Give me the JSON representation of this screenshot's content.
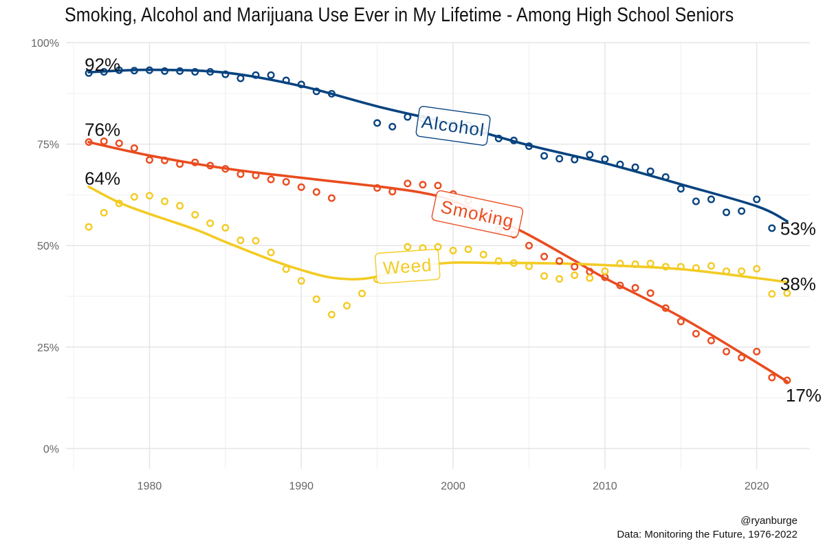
{
  "chart_data": {
    "type": "line",
    "title": "Smoking, Alcohol and Marijuana Use Ever in My Lifetime - Among High School Seniors",
    "xlabel": "",
    "ylabel": "",
    "xlim": [
      1974.5,
      2023.5
    ],
    "ylim": [
      -0.05,
      1.0
    ],
    "x_ticks": [
      {
        "value": 1980,
        "label": "1980"
      },
      {
        "value": 1990,
        "label": "1990"
      },
      {
        "value": 2000,
        "label": "2000"
      },
      {
        "value": 2010,
        "label": "2010"
      },
      {
        "value": 2020,
        "label": "2020"
      }
    ],
    "y_ticks": [
      {
        "value": 0,
        "label": "0%"
      },
      {
        "value": 0.25,
        "label": "25%"
      },
      {
        "value": 0.5,
        "label": "50%"
      },
      {
        "value": 0.75,
        "label": "75%"
      },
      {
        "value": 1.0,
        "label": "100%"
      }
    ],
    "grid": true,
    "legend": "none",
    "series": [
      {
        "name": "Alcohol",
        "color": "#08437F",
        "label_rotation": 8,
        "label_pos": [
          2000,
          0.795
        ],
        "points": [
          [
            1976,
            0.925
          ],
          [
            1977,
            0.928
          ],
          [
            1978,
            0.932
          ],
          [
            1979,
            0.931
          ],
          [
            1980,
            0.932
          ],
          [
            1981,
            0.93
          ],
          [
            1982,
            0.93
          ],
          [
            1983,
            0.928
          ],
          [
            1984,
            0.928
          ],
          [
            1985,
            0.922
          ],
          [
            1986,
            0.912
          ],
          [
            1987,
            0.92
          ],
          [
            1988,
            0.92
          ],
          [
            1989,
            0.907
          ],
          [
            1990,
            0.897
          ],
          [
            1991,
            0.88
          ],
          [
            1992,
            0.874
          ],
          [
            1995,
            0.802
          ],
          [
            1996,
            0.793
          ],
          [
            1997,
            0.817
          ],
          [
            1998,
            0.813
          ],
          [
            1999,
            0.8
          ],
          [
            2000,
            0.8
          ],
          [
            2001,
            0.797
          ],
          [
            2002,
            0.781
          ],
          [
            2003,
            0.764
          ],
          [
            2004,
            0.759
          ],
          [
            2005,
            0.745
          ],
          [
            2006,
            0.721
          ],
          [
            2007,
            0.714
          ],
          [
            2008,
            0.712
          ],
          [
            2009,
            0.724
          ],
          [
            2010,
            0.713
          ],
          [
            2011,
            0.7
          ],
          [
            2012,
            0.693
          ],
          [
            2013,
            0.683
          ],
          [
            2014,
            0.669
          ],
          [
            2015,
            0.64
          ],
          [
            2016,
            0.609
          ],
          [
            2017,
            0.614
          ],
          [
            2018,
            0.582
          ],
          [
            2019,
            0.585
          ],
          [
            2020,
            0.614
          ],
          [
            2021,
            0.543
          ]
        ],
        "trend": [
          [
            1976,
            0.927
          ],
          [
            1980,
            0.933
          ],
          [
            1985,
            0.926
          ],
          [
            1990,
            0.893
          ],
          [
            1995,
            0.843
          ],
          [
            2000,
            0.799
          ],
          [
            2005,
            0.747
          ],
          [
            2010,
            0.703
          ],
          [
            2015,
            0.651
          ],
          [
            2020,
            0.597
          ],
          [
            2022,
            0.56
          ]
        ],
        "end_labels": [
          {
            "text": "92%",
            "x": 1976,
            "y": 0.92,
            "side": "start"
          },
          {
            "text": "53%",
            "x": 2022,
            "y": 0.53,
            "side": "end"
          }
        ]
      },
      {
        "name": "Smoking",
        "color": "#E94C1F",
        "label_rotation": 12,
        "label_pos": [
          2001.6,
          0.578
        ],
        "points": [
          [
            1976,
            0.755
          ],
          [
            1977,
            0.757
          ],
          [
            1978,
            0.752
          ],
          [
            1979,
            0.74
          ],
          [
            1980,
            0.711
          ],
          [
            1981,
            0.71
          ],
          [
            1982,
            0.701
          ],
          [
            1983,
            0.705
          ],
          [
            1984,
            0.697
          ],
          [
            1985,
            0.689
          ],
          [
            1986,
            0.676
          ],
          [
            1987,
            0.673
          ],
          [
            1988,
            0.663
          ],
          [
            1989,
            0.657
          ],
          [
            1990,
            0.644
          ],
          [
            1991,
            0.632
          ],
          [
            1992,
            0.617
          ],
          [
            1995,
            0.642
          ],
          [
            1996,
            0.633
          ],
          [
            1997,
            0.653
          ],
          [
            1998,
            0.65
          ],
          [
            1999,
            0.648
          ],
          [
            2000,
            0.627
          ],
          [
            2001,
            0.611
          ],
          [
            2002,
            0.571
          ],
          [
            2003,
            0.539
          ],
          [
            2004,
            0.527
          ],
          [
            2005,
            0.5
          ],
          [
            2006,
            0.473
          ],
          [
            2007,
            0.462
          ],
          [
            2008,
            0.448
          ],
          [
            2009,
            0.436
          ],
          [
            2010,
            0.422
          ],
          [
            2011,
            0.402
          ],
          [
            2012,
            0.396
          ],
          [
            2013,
            0.383
          ],
          [
            2014,
            0.346
          ],
          [
            2015,
            0.313
          ],
          [
            2016,
            0.283
          ],
          [
            2017,
            0.266
          ],
          [
            2018,
            0.239
          ],
          [
            2019,
            0.224
          ],
          [
            2020,
            0.239
          ],
          [
            2021,
            0.175
          ],
          [
            2022,
            0.168
          ]
        ],
        "trend": [
          [
            1976,
            0.755
          ],
          [
            1980,
            0.722
          ],
          [
            1985,
            0.69
          ],
          [
            1990,
            0.667
          ],
          [
            1995,
            0.646
          ],
          [
            1998,
            0.63
          ],
          [
            2000,
            0.61
          ],
          [
            2003,
            0.562
          ],
          [
            2005,
            0.526
          ],
          [
            2008,
            0.463
          ],
          [
            2010,
            0.42
          ],
          [
            2015,
            0.324
          ],
          [
            2020,
            0.212
          ],
          [
            2022,
            0.165
          ]
        ],
        "end_labels": [
          {
            "text": "76%",
            "x": 1976,
            "y": 0.76,
            "side": "start"
          },
          {
            "text": "17%",
            "x": 2022,
            "y": 0.17,
            "side": "end"
          }
        ]
      },
      {
        "name": "Weed",
        "color": "#F3CB23",
        "label_rotation": -4,
        "label_pos": [
          1997,
          0.449
        ],
        "points": [
          [
            1976,
            0.546
          ],
          [
            1977,
            0.581
          ],
          [
            1978,
            0.604
          ],
          [
            1979,
            0.62
          ],
          [
            1980,
            0.623
          ],
          [
            1981,
            0.609
          ],
          [
            1982,
            0.598
          ],
          [
            1983,
            0.576
          ],
          [
            1984,
            0.555
          ],
          [
            1985,
            0.544
          ],
          [
            1986,
            0.513
          ],
          [
            1987,
            0.512
          ],
          [
            1988,
            0.483
          ],
          [
            1989,
            0.442
          ],
          [
            1990,
            0.413
          ],
          [
            1991,
            0.368
          ],
          [
            1992,
            0.33
          ],
          [
            1993,
            0.352
          ],
          [
            1994,
            0.382
          ],
          [
            1995,
            0.417
          ],
          [
            1996,
            0.449
          ],
          [
            1997,
            0.497
          ],
          [
            1998,
            0.494
          ],
          [
            1999,
            0.497
          ],
          [
            2000,
            0.488
          ],
          [
            2001,
            0.491
          ],
          [
            2002,
            0.478
          ],
          [
            2003,
            0.462
          ],
          [
            2004,
            0.457
          ],
          [
            2005,
            0.449
          ],
          [
            2006,
            0.425
          ],
          [
            2007,
            0.418
          ],
          [
            2008,
            0.427
          ],
          [
            2009,
            0.42
          ],
          [
            2010,
            0.437
          ],
          [
            2011,
            0.456
          ],
          [
            2012,
            0.454
          ],
          [
            2013,
            0.456
          ],
          [
            2014,
            0.448
          ],
          [
            2015,
            0.448
          ],
          [
            2016,
            0.445
          ],
          [
            2017,
            0.45
          ],
          [
            2018,
            0.437
          ],
          [
            2019,
            0.437
          ],
          [
            2020,
            0.443
          ],
          [
            2021,
            0.381
          ],
          [
            2022,
            0.383
          ]
        ],
        "trend": [
          [
            1976,
            0.645
          ],
          [
            1978,
            0.606
          ],
          [
            1980,
            0.578
          ],
          [
            1983,
            0.54
          ],
          [
            1985,
            0.509
          ],
          [
            1988,
            0.465
          ],
          [
            1990,
            0.44
          ],
          [
            1992,
            0.421
          ],
          [
            1994,
            0.418
          ],
          [
            1996,
            0.432
          ],
          [
            1998,
            0.45
          ],
          [
            2000,
            0.458
          ],
          [
            2003,
            0.457
          ],
          [
            2005,
            0.457
          ],
          [
            2008,
            0.455
          ],
          [
            2010,
            0.452
          ],
          [
            2015,
            0.442
          ],
          [
            2020,
            0.42
          ],
          [
            2022,
            0.41
          ]
        ],
        "end_labels": [
          {
            "text": "64%",
            "x": 1976,
            "y": 0.64,
            "side": "start"
          },
          {
            "text": "38%",
            "x": 2022,
            "y": 0.38,
            "side": "end"
          }
        ]
      }
    ]
  },
  "credit": {
    "handle": "@ryanburge",
    "source": "Data: Monitoring the Future, 1976-2022"
  }
}
